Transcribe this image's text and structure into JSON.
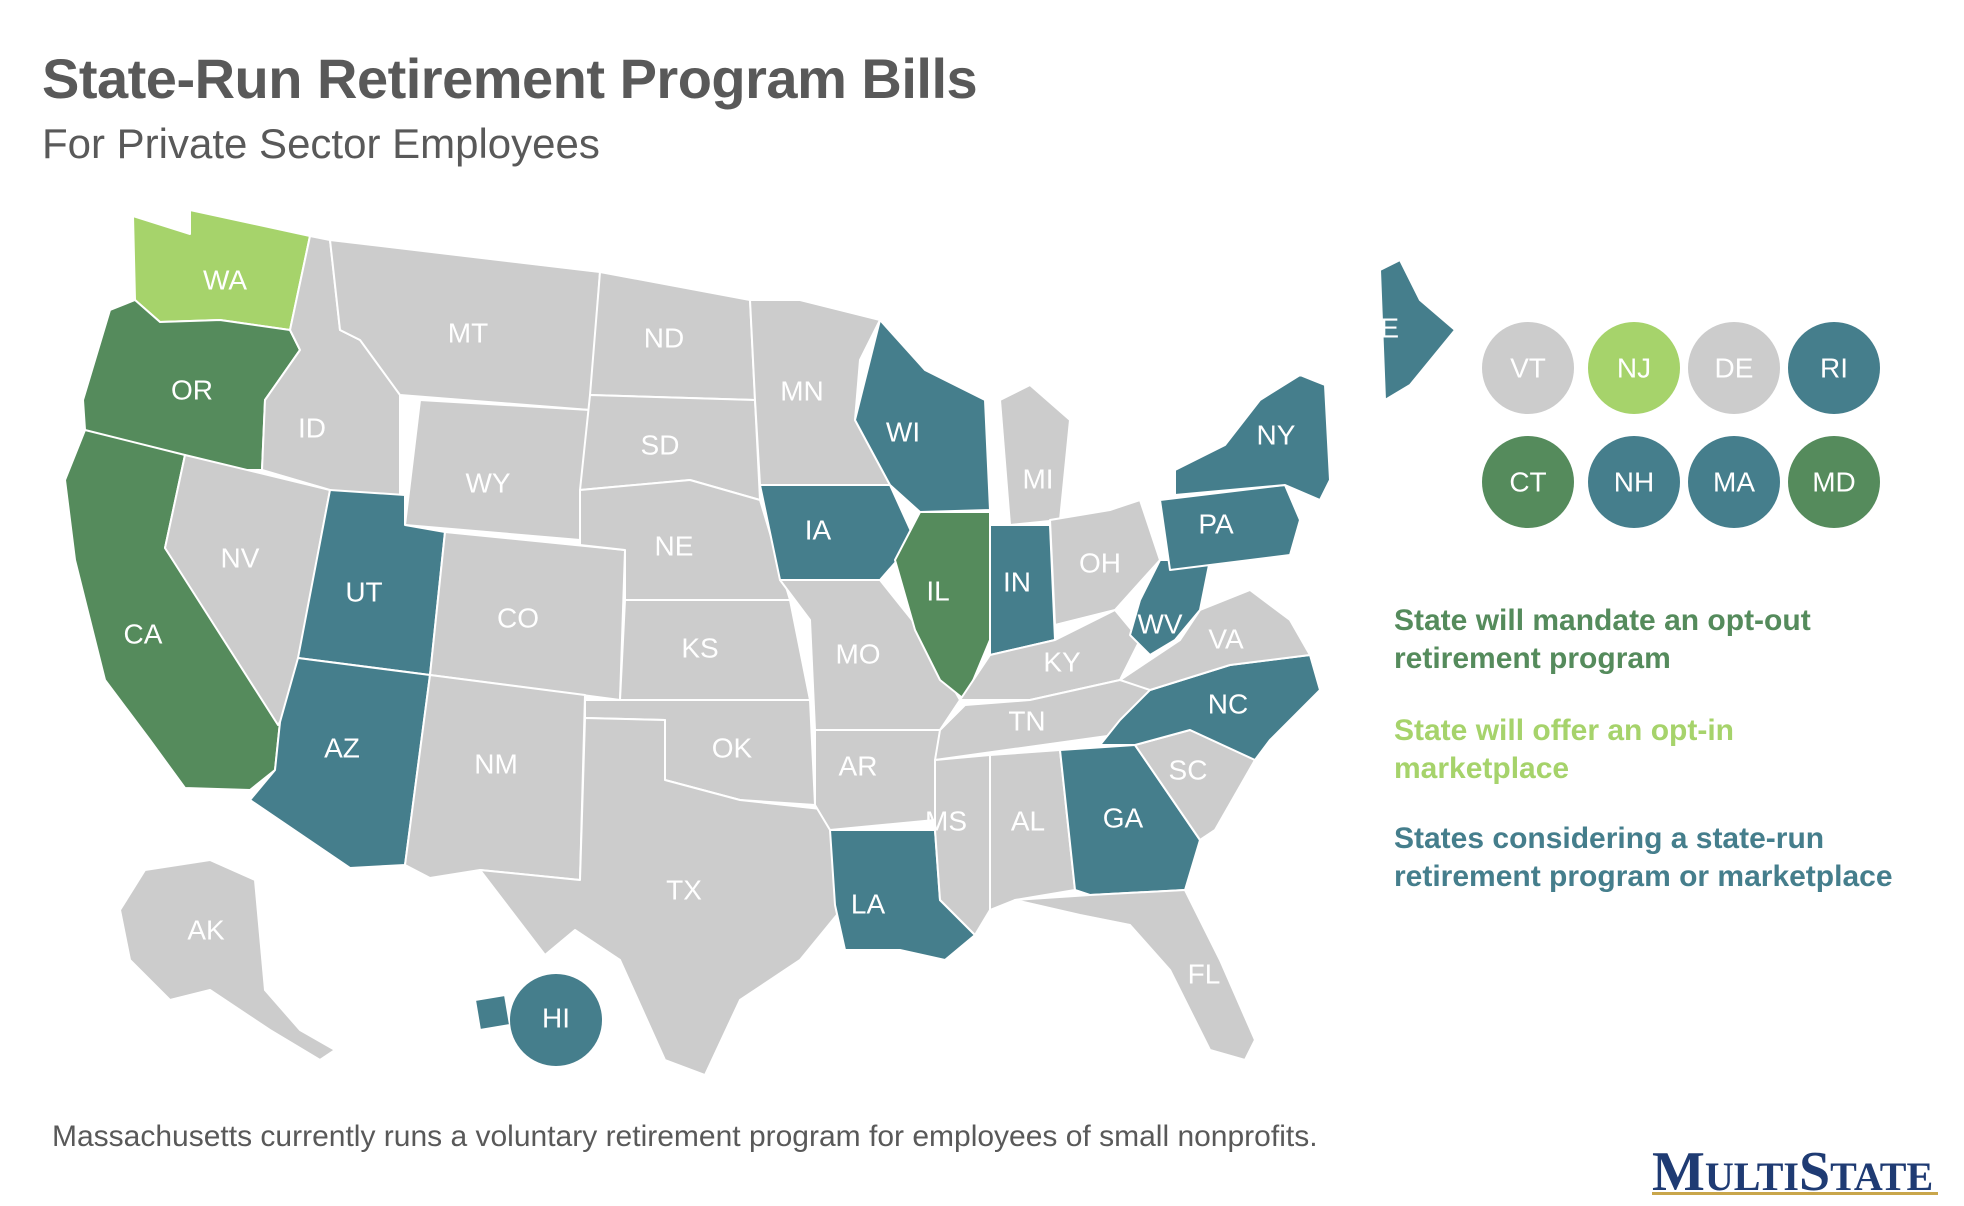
{
  "title": "State-Run Retirement Program Bills",
  "subtitle": "For Private Sector Employees",
  "colors": {
    "mandate": "#558b5c",
    "optin": "#a6d36b",
    "considering": "#457e8c",
    "none": "#cccccc"
  },
  "legend": [
    {
      "category": "mandate",
      "text": "State will mandate an opt-out retirement program"
    },
    {
      "category": "optin",
      "text": "State will offer an opt-in marketplace"
    },
    {
      "category": "considering",
      "text": "States considering a state-run retirement program or marketplace"
    }
  ],
  "states": {
    "WA": "optin",
    "OR": "mandate",
    "CA": "mandate",
    "ID": "none",
    "NV": "none",
    "MT": "none",
    "WY": "none",
    "UT": "considering",
    "AZ": "considering",
    "CO": "none",
    "NM": "none",
    "ND": "none",
    "SD": "none",
    "NE": "none",
    "KS": "none",
    "OK": "none",
    "TX": "none",
    "MN": "none",
    "IA": "considering",
    "MO": "none",
    "AR": "none",
    "LA": "considering",
    "WI": "considering",
    "IL": "mandate",
    "MI": "none",
    "IN": "considering",
    "OH": "none",
    "KY": "none",
    "TN": "none",
    "MS": "none",
    "AL": "none",
    "GA": "considering",
    "FL": "none",
    "SC": "none",
    "NC": "considering",
    "VA": "none",
    "WV": "considering",
    "PA": "considering",
    "NY": "considering",
    "ME": "considering",
    "AK": "none",
    "HI": "considering",
    "VT": "none",
    "NJ": "optin",
    "DE": "none",
    "RI": "considering",
    "CT": "mandate",
    "NH": "considering",
    "MA": "considering",
    "MD": "mandate"
  },
  "small_states": [
    "VT",
    "NJ",
    "DE",
    "RI",
    "CT",
    "NH",
    "MA",
    "MD"
  ],
  "footnote": "Massachusetts currently runs a voluntary retirement program for employees of small nonprofits.",
  "logo": {
    "part1": "M",
    "part2": "ULTI",
    "part3": "S",
    "part4": "TATE"
  }
}
